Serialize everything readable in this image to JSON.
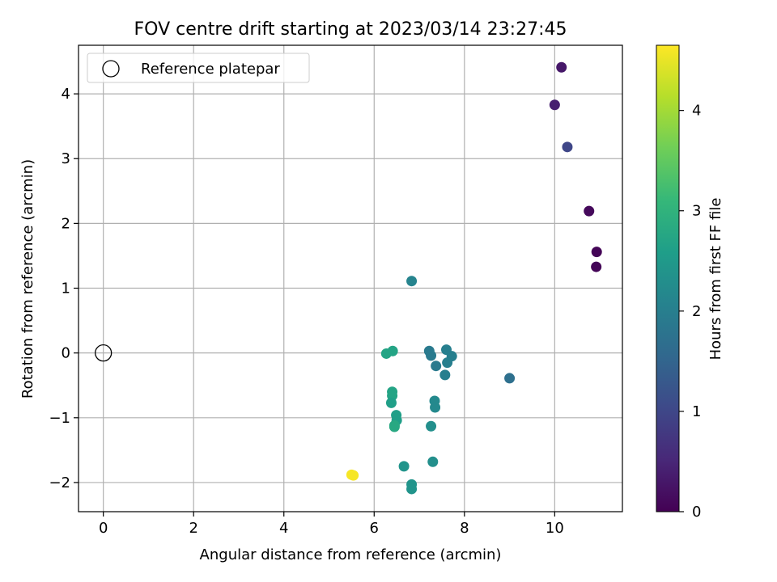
{
  "chart_data": {
    "type": "scatter",
    "title": "FOV centre drift starting at 2023/03/14 23:27:45",
    "xlabel": "Angular distance from reference (arcmin)",
    "ylabel": "Rotation from reference (arcmin)",
    "xlim": [
      -0.55,
      11.5
    ],
    "ylim": [
      -2.45,
      4.75
    ],
    "xticks": [
      0,
      2,
      4,
      6,
      8,
      10
    ],
    "yticks": [
      -2,
      -1,
      0,
      1,
      2,
      3,
      4
    ],
    "grid": true,
    "legend": {
      "placement": "top-left",
      "entries": [
        "Reference platepar"
      ]
    },
    "reference_point": {
      "x": 0,
      "y": 0
    },
    "colorbar": {
      "label": "Hours from first FF file",
      "min": 0,
      "max": 4.65,
      "ticks": [
        0,
        1,
        2,
        3,
        4
      ],
      "colormap": "viridis",
      "stops": [
        "#440154",
        "#482878",
        "#3e4989",
        "#31688e",
        "#26828e",
        "#1f9e89",
        "#35b779",
        "#6ece58",
        "#b5de2b",
        "#fde725"
      ]
    },
    "points": [
      {
        "x": 10.15,
        "y": 4.41,
        "hours": 0.3
      },
      {
        "x": 10.0,
        "y": 3.83,
        "hours": 0.4
      },
      {
        "x": 10.28,
        "y": 3.18,
        "hours": 1.0
      },
      {
        "x": 10.76,
        "y": 2.19,
        "hours": 0.1
      },
      {
        "x": 10.93,
        "y": 1.56,
        "hours": 0.05
      },
      {
        "x": 10.92,
        "y": 1.33,
        "hours": 0.05
      },
      {
        "x": 6.83,
        "y": 1.11,
        "hours": 2.1
      },
      {
        "x": 6.41,
        "y": 0.03,
        "hours": 2.7
      },
      {
        "x": 6.27,
        "y": -0.01,
        "hours": 2.7
      },
      {
        "x": 7.22,
        "y": 0.03,
        "hours": 1.9
      },
      {
        "x": 7.26,
        "y": -0.04,
        "hours": 1.9
      },
      {
        "x": 7.6,
        "y": 0.05,
        "hours": 2.0
      },
      {
        "x": 7.72,
        "y": -0.05,
        "hours": 2.0
      },
      {
        "x": 7.62,
        "y": -0.15,
        "hours": 2.0
      },
      {
        "x": 7.37,
        "y": -0.2,
        "hours": 1.9
      },
      {
        "x": 7.57,
        "y": -0.34,
        "hours": 2.0
      },
      {
        "x": 9.0,
        "y": -0.39,
        "hours": 1.7
      },
      {
        "x": 6.4,
        "y": -0.6,
        "hours": 2.7
      },
      {
        "x": 6.4,
        "y": -0.66,
        "hours": 2.7
      },
      {
        "x": 6.38,
        "y": -0.77,
        "hours": 2.6
      },
      {
        "x": 7.34,
        "y": -0.74,
        "hours": 2.2
      },
      {
        "x": 7.35,
        "y": -0.84,
        "hours": 2.2
      },
      {
        "x": 6.49,
        "y": -0.96,
        "hours": 2.6
      },
      {
        "x": 6.5,
        "y": -1.04,
        "hours": 2.6
      },
      {
        "x": 6.45,
        "y": -1.12,
        "hours": 2.8
      },
      {
        "x": 6.45,
        "y": -1.14,
        "hours": 2.8
      },
      {
        "x": 7.26,
        "y": -1.13,
        "hours": 2.3
      },
      {
        "x": 7.3,
        "y": -1.68,
        "hours": 2.3
      },
      {
        "x": 6.66,
        "y": -1.75,
        "hours": 2.4
      },
      {
        "x": 5.5,
        "y": -1.88,
        "hours": 4.6
      },
      {
        "x": 5.54,
        "y": -1.89,
        "hours": 4.6
      },
      {
        "x": 6.83,
        "y": -2.03,
        "hours": 2.4
      },
      {
        "x": 6.83,
        "y": -2.1,
        "hours": 2.4
      }
    ]
  }
}
